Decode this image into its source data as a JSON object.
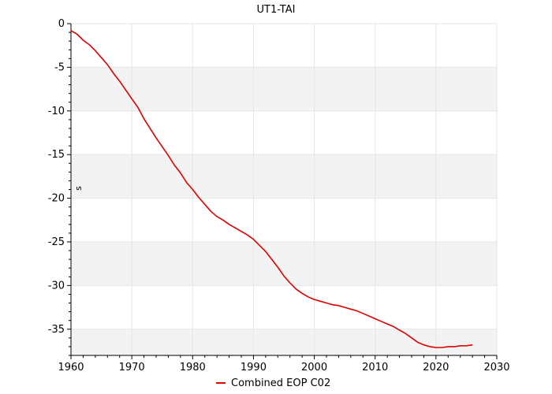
{
  "chart_data": {
    "type": "line",
    "title": "UT1-TAI",
    "xlabel": "",
    "ylabel": "s",
    "xlim": [
      1960,
      2030
    ],
    "ylim": [
      -38,
      0
    ],
    "xticks": [
      1960,
      1970,
      1980,
      1990,
      2000,
      2010,
      2020,
      2030
    ],
    "yticks": [
      0,
      -5,
      -10,
      -15,
      -20,
      -25,
      -30,
      -35
    ],
    "ytick_labels": [
      "0",
      "-5",
      "-10",
      "-15",
      "-20",
      "-25",
      "-30",
      "-35"
    ],
    "grid": true,
    "banded_background": true,
    "legend_position": "bottom-center",
    "series": [
      {
        "name": "Combined EOP C02",
        "color": "#e00000",
        "x": [
          1960.0,
          1961.0,
          1962.0,
          1963.0,
          1964.0,
          1965.0,
          1966.0,
          1967.0,
          1968.0,
          1969.0,
          1970.0,
          1971.0,
          1972.0,
          1973.0,
          1974.0,
          1975.0,
          1976.0,
          1977.0,
          1978.0,
          1979.0,
          1980.0,
          1981.0,
          1982.0,
          1983.0,
          1984.0,
          1985.0,
          1986.0,
          1987.0,
          1988.0,
          1989.0,
          1990.0,
          1991.0,
          1992.0,
          1993.0,
          1994.0,
          1995.0,
          1996.0,
          1997.0,
          1998.0,
          1999.0,
          2000.0,
          2001.0,
          2002.0,
          2003.0,
          2004.0,
          2005.0,
          2006.0,
          2007.0,
          2008.0,
          2009.0,
          2010.0,
          2011.0,
          2012.0,
          2013.0,
          2014.0,
          2015.0,
          2016.0,
          2017.0,
          2018.0,
          2019.0,
          2020.0,
          2021.0,
          2022.0,
          2023.0,
          2024.0,
          2025.0,
          2026.0
        ],
        "y": [
          -0.8,
          -1.2,
          -1.9,
          -2.4,
          -3.1,
          -3.9,
          -4.7,
          -5.7,
          -6.6,
          -7.6,
          -8.6,
          -9.6,
          -10.9,
          -12.0,
          -13.1,
          -14.1,
          -15.1,
          -16.2,
          -17.1,
          -18.2,
          -19.0,
          -19.9,
          -20.7,
          -21.5,
          -22.1,
          -22.5,
          -23.0,
          -23.4,
          -23.8,
          -24.2,
          -24.7,
          -25.4,
          -26.1,
          -27.0,
          -27.9,
          -28.9,
          -29.7,
          -30.4,
          -30.9,
          -31.3,
          -31.6,
          -31.8,
          -32.0,
          -32.2,
          -32.3,
          -32.5,
          -32.7,
          -32.9,
          -33.2,
          -33.5,
          -33.8,
          -34.1,
          -34.4,
          -34.7,
          -35.1,
          -35.5,
          -36.0,
          -36.5,
          -36.8,
          -37.0,
          -37.1,
          -37.1,
          -37.0,
          -37.0,
          -36.9,
          -36.9,
          -36.8
        ]
      }
    ]
  }
}
